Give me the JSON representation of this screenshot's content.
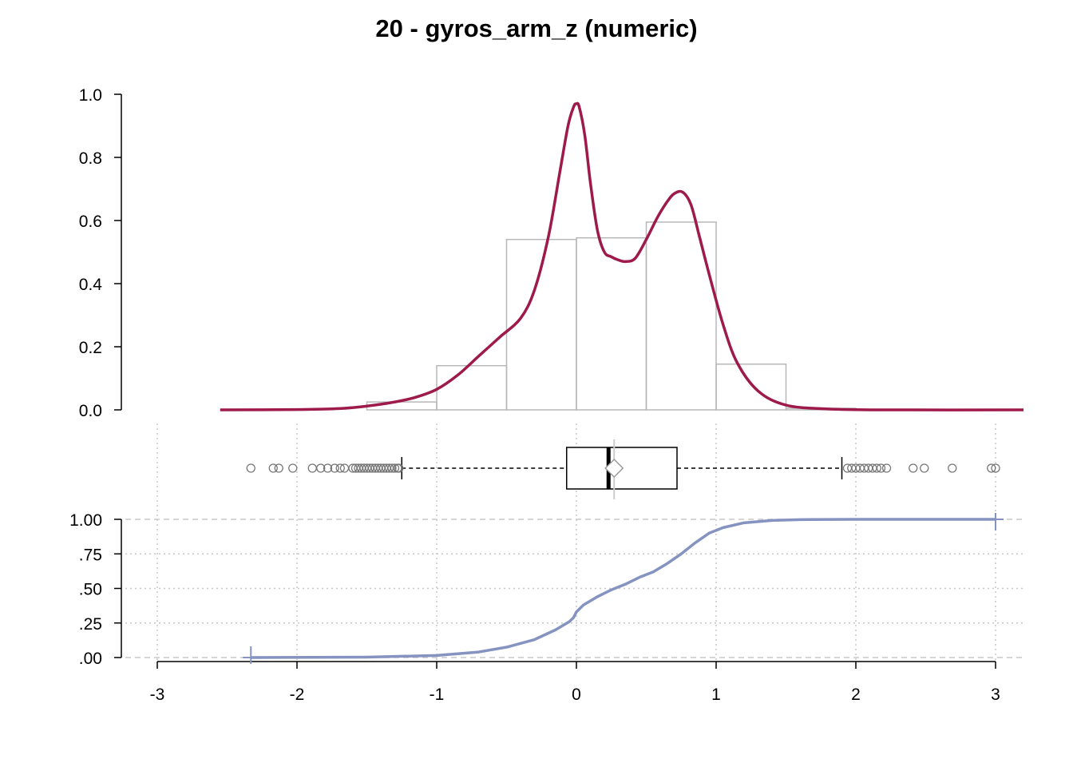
{
  "title": "20 - gyros_arm_z (numeric)",
  "colors": {
    "density": "#9e1a4a",
    "hist_border": "#b8b8b8",
    "ecdf": "#8593c0",
    "grid": "#c8c8c8",
    "outlier": "#777777",
    "mean_marker": "#999999"
  },
  "chart_data": [
    {
      "type": "histogram",
      "yticks": [
        "0.0",
        "0.2",
        "0.4",
        "0.6",
        "0.8",
        "1.0"
      ],
      "ylim": [
        0,
        1
      ],
      "bins": [
        {
          "x0": -1.5,
          "x1": -1.0,
          "density": 0.025
        },
        {
          "x0": -1.0,
          "x1": -0.5,
          "density": 0.14
        },
        {
          "x0": -0.5,
          "x1": 0.0,
          "density": 0.54
        },
        {
          "x0": 0.0,
          "x1": 0.5,
          "density": 0.545
        },
        {
          "x0": 0.5,
          "x1": 1.0,
          "density": 0.595
        },
        {
          "x0": 1.0,
          "x1": 1.5,
          "density": 0.145
        },
        {
          "x0": 1.5,
          "x1": 2.0,
          "density": 0.005
        }
      ],
      "density_curve": {
        "x": [
          -2.55,
          -2.0,
          -1.7,
          -1.5,
          -1.3,
          -1.15,
          -1.0,
          -0.85,
          -0.7,
          -0.55,
          -0.4,
          -0.3,
          -0.2,
          -0.12,
          -0.06,
          -0.02,
          0.0,
          0.02,
          0.06,
          0.1,
          0.15,
          0.2,
          0.25,
          0.3,
          0.35,
          0.42,
          0.5,
          0.58,
          0.65,
          0.7,
          0.76,
          0.82,
          0.88,
          0.95,
          1.05,
          1.15,
          1.3,
          1.5,
          1.8,
          2.2,
          3.2
        ],
        "y": [
          0.0,
          0.001,
          0.004,
          0.012,
          0.025,
          0.04,
          0.065,
          0.11,
          0.17,
          0.23,
          0.29,
          0.38,
          0.55,
          0.75,
          0.9,
          0.96,
          0.97,
          0.96,
          0.87,
          0.72,
          0.57,
          0.5,
          0.485,
          0.475,
          0.47,
          0.48,
          0.54,
          0.61,
          0.66,
          0.685,
          0.69,
          0.65,
          0.55,
          0.43,
          0.27,
          0.15,
          0.06,
          0.015,
          0.003,
          0.0,
          0.0
        ]
      }
    },
    {
      "type": "boxplot",
      "whisker_low": -1.25,
      "q1": -0.07,
      "median": 0.23,
      "mean": 0.27,
      "q3": 0.72,
      "whisker_high": 1.9,
      "outliers": [
        -2.33,
        -2.17,
        -2.13,
        -2.03,
        -1.89,
        -1.83,
        -1.78,
        -1.73,
        -1.69,
        -1.66,
        -1.6,
        -1.58,
        -1.56,
        -1.54,
        -1.52,
        -1.5,
        -1.48,
        -1.46,
        -1.44,
        -1.42,
        -1.4,
        -1.38,
        -1.36,
        -1.34,
        -1.32,
        -1.3,
        -1.28,
        -1.27,
        1.94,
        1.97,
        2.0,
        2.03,
        2.06,
        2.09,
        2.12,
        2.15,
        2.18,
        2.22,
        2.41,
        2.49,
        2.69,
        2.97,
        3.0
      ]
    },
    {
      "type": "ecdf",
      "yticks": [
        "1.00",
        ".75",
        ".50",
        ".25",
        ".00"
      ],
      "ytick_values": [
        1.0,
        0.75,
        0.5,
        0.25,
        0.0
      ],
      "xticks": [
        "-3",
        "-2",
        "-1",
        "0",
        "1",
        "2",
        "3"
      ],
      "xtick_values": [
        -3,
        -2,
        -1,
        0,
        1,
        2,
        3
      ],
      "x": [
        -2.33,
        -1.5,
        -1.0,
        -0.7,
        -0.5,
        -0.3,
        -0.15,
        -0.05,
        -0.02,
        0.0,
        0.05,
        0.15,
        0.25,
        0.35,
        0.45,
        0.55,
        0.65,
        0.75,
        0.85,
        0.95,
        1.05,
        1.2,
        1.4,
        1.6,
        2.0,
        3.0
      ],
      "y": [
        0.0,
        0.003,
        0.015,
        0.04,
        0.075,
        0.13,
        0.2,
        0.26,
        0.29,
        0.33,
        0.38,
        0.44,
        0.49,
        0.53,
        0.58,
        0.62,
        0.68,
        0.75,
        0.83,
        0.9,
        0.94,
        0.975,
        0.992,
        0.998,
        1.0,
        1.0
      ]
    }
  ]
}
